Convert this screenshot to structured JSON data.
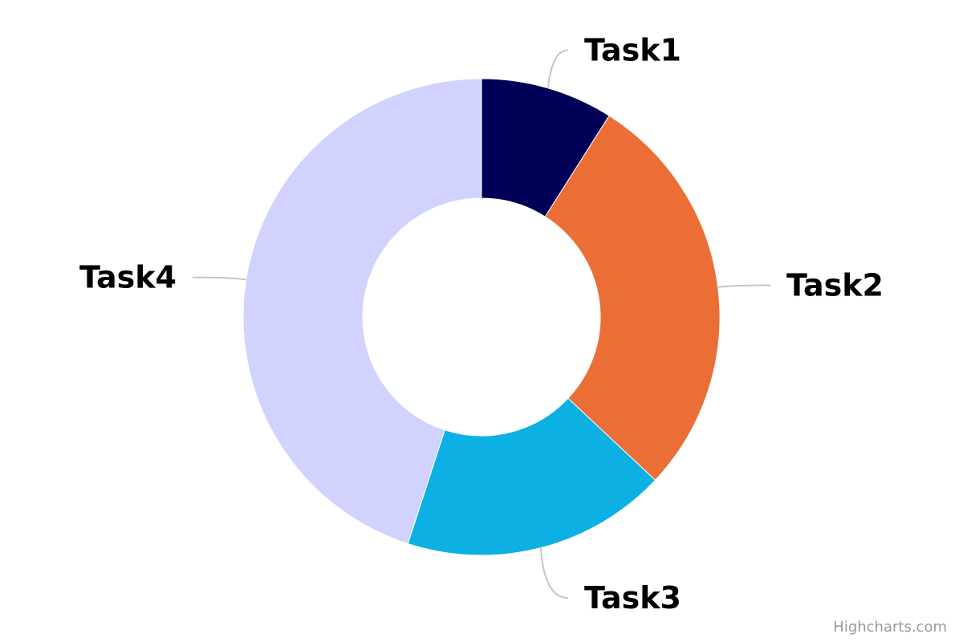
{
  "chart_data": {
    "type": "pie",
    "variant": "donut",
    "categories": [
      "Task1",
      "Task2",
      "Task3",
      "Task4"
    ],
    "values": [
      9,
      28,
      18,
      45
    ],
    "colors": [
      "#000156",
      "#ea6e36",
      "#0cb0e3",
      "#d2d2fe"
    ],
    "title": "",
    "legend": "none",
    "data_labels": "outside-with-connectors"
  },
  "credits": "Highcharts.com"
}
